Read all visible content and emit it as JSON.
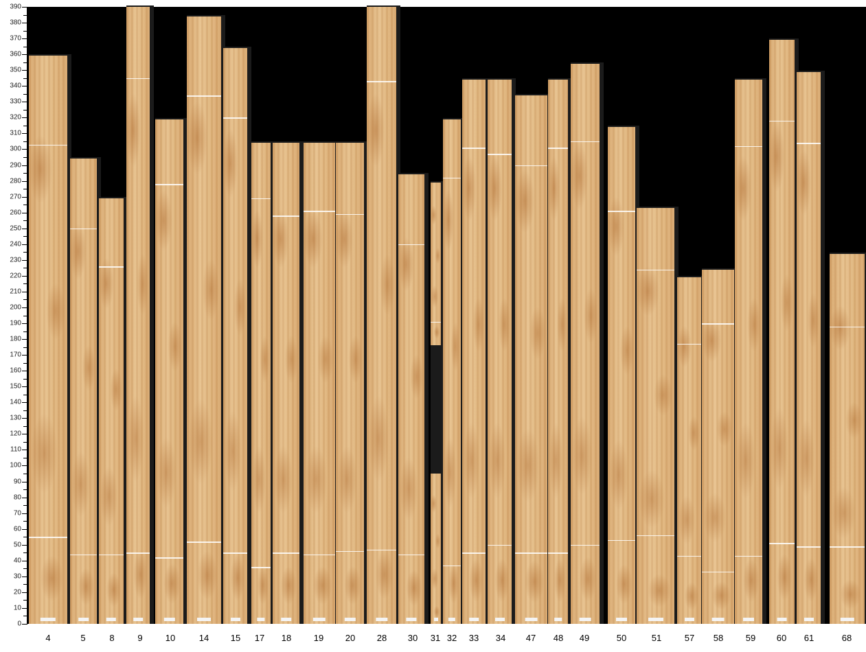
{
  "y_axis": {
    "min": 0,
    "max": 390,
    "major_step": 10,
    "minor_step": 5
  },
  "wood_color": "#e0b47c",
  "background_color": "#000000",
  "chart_data": {
    "type": "bar",
    "ylim": [
      0,
      390
    ],
    "categories": [
      "4",
      "5",
      "8",
      "9",
      "10",
      "14",
      "15",
      "17",
      "18",
      "19",
      "20",
      "28",
      "30",
      "31",
      "32",
      "33",
      "34",
      "47",
      "48",
      "49",
      "50",
      "51",
      "57",
      "58",
      "59",
      "60",
      "61",
      "68"
    ],
    "strips": [
      {
        "label": "4",
        "length": 359,
        "marks": [
          303,
          55
        ]
      },
      {
        "label": "5",
        "length": 294,
        "marks": [
          250,
          44
        ]
      },
      {
        "label": "8",
        "length": 269,
        "marks": [
          226,
          44
        ]
      },
      {
        "label": "9",
        "length": 390,
        "marks": [
          345,
          45
        ]
      },
      {
        "label": "10",
        "length": 319,
        "marks": [
          278,
          42
        ]
      },
      {
        "label": "14",
        "length": 384,
        "marks": [
          334,
          52
        ]
      },
      {
        "label": "15",
        "length": 364,
        "marks": [
          320,
          45
        ]
      },
      {
        "label": "17",
        "length": 304,
        "marks": [
          269,
          36
        ]
      },
      {
        "label": "18",
        "length": 304,
        "marks": [
          258,
          45
        ]
      },
      {
        "label": "19",
        "length": 304,
        "marks": [
          261,
          44
        ]
      },
      {
        "label": "20",
        "length": 304,
        "marks": [
          259,
          46
        ]
      },
      {
        "label": "28",
        "length": 390,
        "marks": [
          343,
          47
        ]
      },
      {
        "label": "30",
        "length": 284,
        "marks": [
          240,
          44
        ]
      },
      {
        "label": "31",
        "length": 279,
        "gap": [
          95,
          176
        ],
        "marks": [
          191
        ]
      },
      {
        "label": "32",
        "length": 319,
        "marks": [
          282,
          37
        ]
      },
      {
        "label": "33",
        "length": 344,
        "marks": [
          301,
          45
        ]
      },
      {
        "label": "34",
        "length": 344,
        "marks": [
          297,
          50
        ]
      },
      {
        "label": "47",
        "length": 334,
        "marks": [
          290,
          45
        ]
      },
      {
        "label": "48",
        "length": 344,
        "marks": [
          301,
          45
        ]
      },
      {
        "label": "49",
        "length": 354,
        "marks": [
          305,
          50
        ]
      },
      {
        "label": "50",
        "length": 314,
        "marks": [
          261,
          53
        ]
      },
      {
        "label": "51",
        "length": 263,
        "marks": [
          224,
          56
        ]
      },
      {
        "label": "57",
        "length": 219,
        "marks": [
          177,
          43
        ]
      },
      {
        "label": "58",
        "length": 224,
        "marks": [
          190,
          33
        ]
      },
      {
        "label": "59",
        "length": 344,
        "marks": [
          302,
          43
        ]
      },
      {
        "label": "60",
        "length": 369,
        "marks": [
          318,
          51
        ]
      },
      {
        "label": "61",
        "length": 349,
        "marks": [
          304,
          49
        ]
      },
      {
        "label": "68",
        "length": 234,
        "marks": [
          188,
          49
        ]
      }
    ]
  }
}
